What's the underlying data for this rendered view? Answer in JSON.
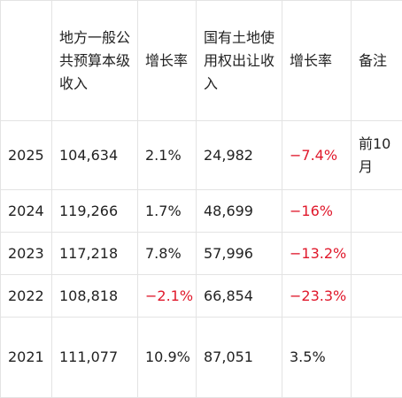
{
  "table": {
    "headers": [
      "",
      "地方一般公共预算本级收入",
      "增长率",
      "国有土地使用权出让收入",
      "增长率",
      "备注"
    ],
    "rows": [
      {
        "year": "2025",
        "budget_revenue": "104,634",
        "budget_growth": "2.1%",
        "land_revenue": "24,982",
        "land_growth": "−7.4%",
        "note": "前10月"
      },
      {
        "year": "2024",
        "budget_revenue": "119,266",
        "budget_growth": "1.7%",
        "land_revenue": "48,699",
        "land_growth": "−16%",
        "note": ""
      },
      {
        "year": "2023",
        "budget_revenue": "117,218",
        "budget_growth": "7.8%",
        "land_revenue": "57,996",
        "land_growth": "−13.2%",
        "note": ""
      },
      {
        "year": "2022",
        "budget_revenue": "108,818",
        "budget_growth": "−2.1%",
        "land_revenue": "66,854",
        "land_growth": "−23.3%",
        "note": ""
      },
      {
        "year": "2021",
        "budget_revenue": "111,077",
        "budget_growth": "10.9%",
        "land_revenue": "87,051",
        "land_growth": "3.5%",
        "note": ""
      }
    ]
  },
  "colors": {
    "negative": "#e0182b",
    "text": "#222222",
    "border": "#e3e3e3"
  }
}
